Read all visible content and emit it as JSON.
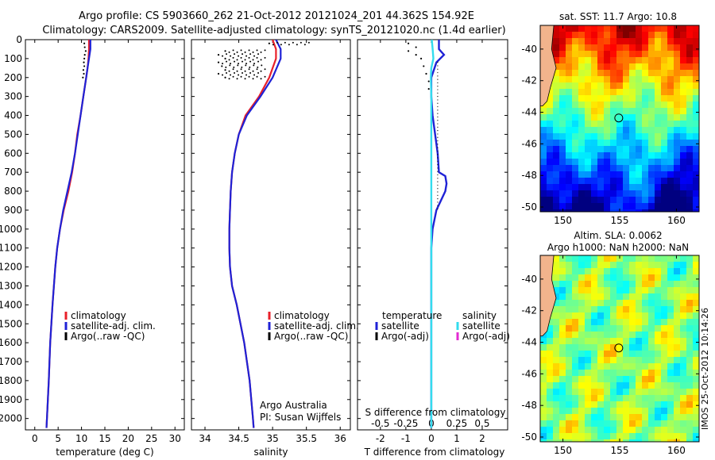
{
  "header": {
    "line1": "Argo profile: CS 5903660_262 21-Oct-2012 20121024_201 44.362S 154.92E",
    "line2": "Climatology: CARS2009. Satellite-adjusted climatology: synTS_20121020.nc (1.4d earlier)"
  },
  "colors": {
    "climatology": "#e8202a",
    "satellite": "#1f22d6",
    "argo": "#000000",
    "sal_satellite": "#33dcee",
    "sal_argo": "#e32bd2",
    "map_land": "#f2b48c",
    "marker": "#000000"
  },
  "chart_data": [
    {
      "type": "line",
      "title": "",
      "xlabel": "temperature (deg C)",
      "ylabel": "",
      "xlim": [
        -2,
        32
      ],
      "ylim": [
        2060,
        0
      ],
      "xticks": [
        0,
        5,
        10,
        15,
        20,
        25,
        30
      ],
      "yticks": [
        0,
        100,
        200,
        300,
        400,
        500,
        600,
        700,
        800,
        900,
        1000,
        1100,
        1200,
        1300,
        1400,
        1500,
        1600,
        1700,
        1800,
        1900,
        2000
      ],
      "legend": [
        "climatology",
        "satellite-adj. clim.",
        "Argo(..raw -QC)"
      ],
      "series": [
        {
          "name": "climatology",
          "color": "#e8202a",
          "depth": [
            0,
            50,
            100,
            150,
            200,
            300,
            400,
            500,
            600,
            700,
            800,
            900,
            1000,
            1100,
            1200,
            1400,
            1600,
            1800,
            2000,
            2050
          ],
          "values": [
            11.6,
            11.6,
            11.5,
            11.3,
            11.0,
            10.4,
            9.8,
            9.1,
            8.6,
            8.0,
            7.2,
            6.2,
            5.4,
            4.8,
            4.4,
            3.8,
            3.3,
            3.0,
            2.6,
            2.5
          ]
        },
        {
          "name": "satellite-adj. clim.",
          "color": "#1f22d6",
          "depth": [
            0,
            50,
            100,
            150,
            200,
            300,
            400,
            500,
            600,
            700,
            800,
            900,
            1000,
            1100,
            1200,
            1400,
            1600,
            1800,
            2000,
            2050
          ],
          "values": [
            11.9,
            11.9,
            11.6,
            11.3,
            11.0,
            10.4,
            9.8,
            9.2,
            8.6,
            7.9,
            7.0,
            6.1,
            5.4,
            4.8,
            4.4,
            3.8,
            3.3,
            3.0,
            2.6,
            2.5
          ]
        },
        {
          "name": "Argo(..raw -QC)",
          "color": "#000000",
          "depth": [
            20,
            40,
            60,
            80,
            100,
            120,
            140,
            160,
            180,
            200
          ],
          "values": [
            10.6,
            10.7,
            10.9,
            10.7,
            10.6,
            10.5,
            10.6,
            10.4,
            10.5,
            10.3
          ]
        }
      ]
    },
    {
      "type": "line",
      "title": "",
      "xlabel": "salinity",
      "ylabel": "",
      "xlim": [
        33.8,
        36.15
      ],
      "ylim": [
        2060,
        0
      ],
      "xticks": [
        34,
        34.5,
        35,
        35.5,
        36
      ],
      "legend": [
        "climatology",
        "satellite-adj. clim.",
        "Argo(..raw -QC)"
      ],
      "annotation": [
        "Argo Australia",
        "PI: Susan Wijffels"
      ],
      "series": [
        {
          "name": "climatology",
          "color": "#e8202a",
          "depth": [
            0,
            50,
            100,
            200,
            300,
            400,
            500,
            600,
            700,
            800,
            900,
            1000,
            1100,
            1200,
            1300,
            1400,
            1600,
            1800,
            2000,
            2050
          ],
          "values": [
            35.0,
            35.05,
            35.05,
            34.95,
            34.8,
            34.6,
            34.5,
            34.44,
            34.4,
            34.38,
            34.37,
            34.36,
            34.36,
            34.37,
            34.4,
            34.47,
            34.58,
            34.66,
            34.71,
            34.72
          ]
        },
        {
          "name": "satellite-adj. clim.",
          "color": "#1f22d6",
          "depth": [
            0,
            50,
            100,
            200,
            300,
            400,
            500,
            600,
            700,
            800,
            900,
            1000,
            1100,
            1200,
            1300,
            1400,
            1600,
            1800,
            2000,
            2050
          ],
          "values": [
            35.05,
            35.12,
            35.12,
            35.0,
            34.82,
            34.62,
            34.5,
            34.44,
            34.4,
            34.38,
            34.37,
            34.36,
            34.36,
            34.37,
            34.4,
            34.47,
            34.58,
            34.66,
            34.71,
            34.72
          ]
        },
        {
          "name": "Argo(..raw -QC)",
          "color": "#000000",
          "depth": [
            20,
            60,
            80,
            100,
            120,
            140,
            160,
            180,
            200
          ],
          "values": [
            34.95,
            34.3,
            34.2,
            34.3,
            34.2,
            34.25,
            34.3,
            34.2,
            34.3
          ]
        }
      ]
    },
    {
      "type": "line",
      "title": "",
      "xlabel": "T difference from climatology",
      "x2label": "S difference from climatology",
      "ylabel": "",
      "xlim": [
        -2.9,
        3.0
      ],
      "ylim": [
        2060,
        0
      ],
      "xticks": [
        -2,
        -1,
        0,
        1,
        2
      ],
      "sticks": [
        -0.5,
        -0.25,
        0,
        0.25,
        0.5
      ],
      "stick_labels": [
        "-0.5",
        "-0.25",
        "0",
        "0.25",
        "0.5"
      ],
      "legend_groups": [
        "temperature",
        "salinity"
      ],
      "legend": [
        "satellite",
        "Argo(-adj)",
        "satellite",
        "Argo(-adj)"
      ],
      "series": [
        {
          "name": "temperature satellite",
          "color": "#1f22d6",
          "depth": [
            0,
            50,
            80,
            120,
            200,
            300,
            400,
            500,
            600,
            700,
            720,
            760,
            800,
            900,
            1000,
            1100,
            1200,
            1400,
            1600,
            1800,
            2000,
            2050
          ],
          "values": [
            0.3,
            0.3,
            0.5,
            0.2,
            0.0,
            0.0,
            0.05,
            0.15,
            0.25,
            0.3,
            0.55,
            0.6,
            0.55,
            0.2,
            0.05,
            0.0,
            0.0,
            0.0,
            0.0,
            0.0,
            0.0,
            0.0
          ]
        },
        {
          "name": "salinity satellite",
          "color": "#33dcee",
          "depth": [
            0,
            60,
            100,
            150,
            200,
            300,
            400,
            500,
            600,
            700,
            800,
            900,
            1000,
            1200,
            1400,
            1600,
            1800,
            2000,
            2050
          ],
          "values": [
            0.02,
            0.06,
            0.08,
            0.0,
            -0.02,
            0.0,
            0.0,
            0.0,
            0.0,
            0.0,
            0.0,
            0.0,
            0.0,
            0.0,
            0.0,
            0.0,
            0.0,
            0.0,
            0.0
          ]
        },
        {
          "name": "temperature Argo(-adj)",
          "color": "#000000",
          "depth": [
            20,
            40,
            60,
            80,
            100,
            140,
            180,
            220,
            260
          ],
          "values": [
            -0.9,
            -0.6,
            -0.9,
            -0.6,
            -0.4,
            -0.3,
            -0.2,
            -0.1,
            -0.1
          ]
        }
      ]
    },
    {
      "type": "heatmap",
      "title": "sat. SST: 11.7 Argo: 10.8",
      "xlim": [
        148,
        162
      ],
      "ylim": [
        -50.3,
        -38.5
      ],
      "xticks": [
        150,
        155,
        160
      ],
      "yticks": [
        -40,
        -42,
        -44,
        -46,
        -48,
        -50
      ],
      "ytick_labels": [
        "-40",
        "-42",
        "-44",
        "-46",
        "-48",
        "-50"
      ],
      "marker": {
        "lon": 154.92,
        "lat": -44.362
      }
    },
    {
      "type": "heatmap",
      "title": "Altim. SLA: 0.0062",
      "subtitle": "Argo h1000: NaN h2000: NaN",
      "xlim": [
        148,
        162
      ],
      "ylim": [
        -50.3,
        -38.5
      ],
      "xticks": [
        150,
        155,
        160
      ],
      "yticks": [
        -40,
        -42,
        -44,
        -46,
        -48,
        -50
      ],
      "ytick_labels": [
        "-40",
        "-42",
        "-44",
        "-46",
        "-48",
        "-50"
      ],
      "marker": {
        "lon": 154.92,
        "lat": -44.362
      }
    }
  ],
  "footer": {
    "stamp": "IMOS 25-Oct-2012 10:14:26"
  }
}
